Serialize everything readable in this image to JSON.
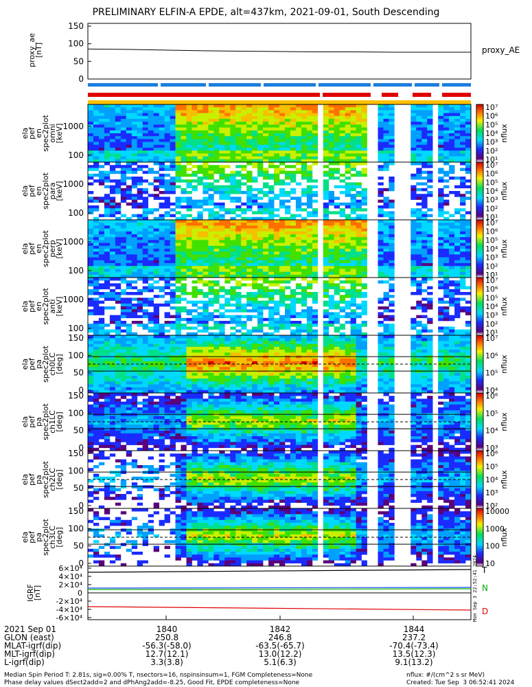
{
  "title": "PRELIMINARY ELFIN-A EPDE, alt=437km, 2021-09-01, South Descending",
  "proxy_ae": {
    "ylabel": "proxy_ae\n[nT]",
    "legend": "proxy_AE",
    "yticks": [
      "150",
      "100",
      "50",
      "0"
    ],
    "values": [
      85,
      84,
      82,
      80,
      79,
      78,
      77,
      77,
      76,
      76,
      76
    ]
  },
  "panels": [
    {
      "ylabel": "ela\npef\nen\nspec2plot\nomni\n[keV]",
      "yticks": [
        "1000",
        "100"
      ],
      "cbar_ticks": [
        "10⁷",
        "10⁶",
        "10⁵",
        "10⁴",
        "10³",
        "10²",
        "10¹"
      ],
      "cbar_label": "nflux"
    },
    {
      "ylabel": "ela\npef\nen\nspec2plot\npara\n[keV]",
      "yticks": [
        "1000",
        "100"
      ],
      "cbar_ticks": [
        "10⁷",
        "10⁶",
        "10⁵",
        "10⁴",
        "10³",
        "10²",
        "10¹"
      ],
      "cbar_label": "nflux"
    },
    {
      "ylabel": "ela\npef\nen\nspec2plot\nperp\n[keV]",
      "yticks": [
        "1000",
        "100"
      ],
      "cbar_ticks": [
        "10⁷",
        "10⁶",
        "10⁵",
        "10⁴",
        "10³",
        "10²",
        "10¹"
      ],
      "cbar_label": "nflux"
    },
    {
      "ylabel": "ela\npef\nen\nspec2plot\nanti\n[keV]",
      "yticks": [
        "1000",
        "100"
      ],
      "cbar_ticks": [
        "10⁷",
        "10⁶",
        "10⁵",
        "10⁴",
        "10³",
        "10²",
        "10¹"
      ],
      "cbar_label": "nflux"
    },
    {
      "ylabel": "ela\npef\npa\nspec2plot\nch0LC\n[deg]",
      "yticks": [
        "150",
        "100",
        "50",
        "0"
      ],
      "cbar_ticks": [
        "10⁷",
        "10⁶",
        "10⁵",
        "10⁴"
      ],
      "cbar_label": "nflux"
    },
    {
      "ylabel": "ela\npef\npa\nspec2plot\nch1LC\n[deg]",
      "yticks": [
        "150",
        "100",
        "50",
        "0"
      ],
      "cbar_ticks": [
        "10⁶",
        "10⁵",
        "10⁴",
        "10³"
      ],
      "cbar_label": "nflux"
    },
    {
      "ylabel": "ela\npef\npa\nspec2plot\nch2LC\n[deg]",
      "yticks": [
        "150",
        "100",
        "50",
        "0"
      ],
      "cbar_ticks": [
        "10⁶",
        "10⁵",
        "10⁴",
        "10³",
        "10²"
      ],
      "cbar_label": "nflux"
    },
    {
      "ylabel": "ela\npef\npa\nspec2plot\nch3LC\n[deg]",
      "yticks": [
        "150",
        "100",
        "50",
        "0"
      ],
      "cbar_ticks": [
        "10000",
        "1000",
        "100",
        "10"
      ],
      "cbar_label": "nflux"
    }
  ],
  "igrf": {
    "ylabel": "IGRF\n[nT]",
    "yticks": [
      "6×10⁴",
      "4×10⁴",
      "2×10⁴",
      "0",
      "-2×10⁴",
      "-4×10⁴",
      "-6×10⁴"
    ],
    "legend": [
      "T",
      "N",
      "D"
    ],
    "side_text": "Mon Sep 3 22:52:41 2024"
  },
  "chart_data": [
    {
      "type": "line",
      "title": "PRELIMINARY ELFIN-A EPDE, alt=437km, 2021-09-01, South Descending",
      "ylabel": "proxy_ae [nT]",
      "ylim": [
        0,
        150
      ],
      "x": [
        "1838.5",
        "1839",
        "1839.5",
        "1840",
        "1840.5",
        "1841",
        "1841.5",
        "1842",
        "1842.5",
        "1843",
        "1843.5"
      ],
      "series": [
        {
          "name": "proxy_AE",
          "values": [
            85,
            84,
            82,
            80,
            79,
            78,
            77,
            77,
            76,
            76,
            76
          ]
        }
      ]
    },
    {
      "type": "heatmap",
      "ylabel": "ela pef en spec2plot omni [keV]",
      "colorbar": "nflux",
      "colorbar_range": [
        "10¹",
        "10⁷"
      ]
    },
    {
      "type": "heatmap",
      "ylabel": "ela pef en spec2plot para [keV]",
      "colorbar": "nflux"
    },
    {
      "type": "heatmap",
      "ylabel": "ela pef en spec2plot perp [keV]",
      "colorbar": "nflux"
    },
    {
      "type": "heatmap",
      "ylabel": "ela pef en spec2plot anti [keV]",
      "colorbar": "nflux"
    },
    {
      "type": "heatmap",
      "ylabel": "ela pef pa spec2plot ch0LC [deg]",
      "ylim": [
        0,
        180
      ],
      "colorbar": "nflux"
    },
    {
      "type": "heatmap",
      "ylabel": "ela pef pa spec2plot ch1LC [deg]",
      "ylim": [
        0,
        180
      ],
      "colorbar": "nflux"
    },
    {
      "type": "heatmap",
      "ylabel": "ela pef pa spec2plot ch2LC [deg]",
      "ylim": [
        0,
        180
      ],
      "colorbar": "nflux"
    },
    {
      "type": "heatmap",
      "ylabel": "ela pef pa spec2plot ch3LC [deg]",
      "ylim": [
        0,
        180
      ],
      "colorbar": "nflux",
      "colorbar_range": [
        "10",
        "10000"
      ]
    },
    {
      "type": "line",
      "ylabel": "IGRF [nT]",
      "ylim": [
        -60000,
        60000
      ],
      "series": [
        {
          "name": "T",
          "values": [
            42000,
            42500,
            43000,
            43500,
            44000
          ]
        },
        {
          "name": "N",
          "values": [
            12000,
            11000,
            10000,
            9000,
            8000
          ]
        },
        {
          "name": "D",
          "values": [
            -33000,
            -34000,
            -35000,
            -36000,
            -37000
          ]
        }
      ]
    }
  ],
  "footer": {
    "rows": [
      {
        "label": "2021 Sep 01",
        "v": [
          "1840",
          "1842",
          "1844"
        ]
      },
      {
        "label": "GLON (east)",
        "v": [
          "250.8",
          "246.8",
          "237.2"
        ]
      },
      {
        "label": "MLAT-igrf(dip)",
        "v": [
          "-56.3(-58.0)",
          "-63.5(-65.7)",
          "-70.4(-73.4)"
        ]
      },
      {
        "label": "MLT-igrf(dip)",
        "v": [
          "12.7(12.1)",
          "13.0(12.2)",
          "13.5(12.3)"
        ]
      },
      {
        "label": "L-igrf(dip)",
        "v": [
          "3.3(3.8)",
          "5.1(6.3)",
          "9.1(13.2)"
        ]
      }
    ],
    "line1": "Median Spin Period T: 2.81s, sig=0.00% T, nsectors=16, nspinsinsum=1, FGM Completeness=None",
    "line2": "Phase delay values dSect2add=2 and dPhAng2add=-8.25, Good Fit, EPDE completeness=None",
    "units": "nflux: #/(cm^2 s sr MeV)",
    "created": "Created: Tue Sep  3 06:52:41 2024"
  }
}
